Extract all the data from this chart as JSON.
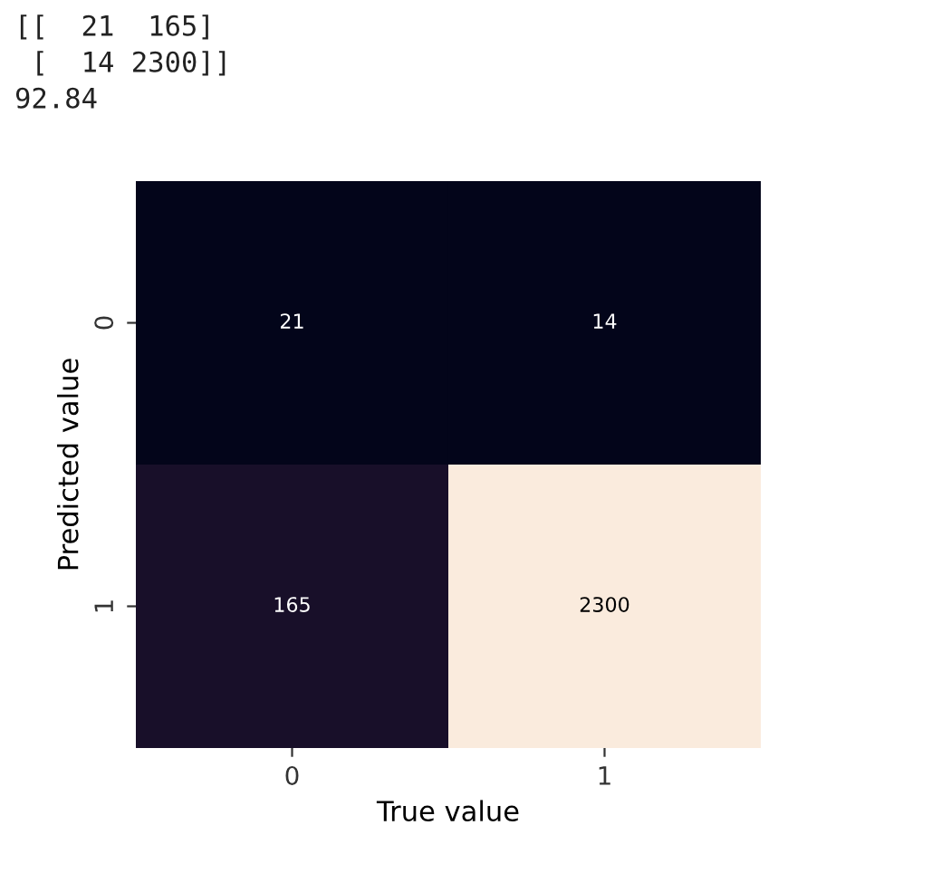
{
  "chart_data": {
    "type": "heatmap",
    "xlabel": "True value",
    "ylabel": "Predicted value",
    "categories": [
      "0",
      "1"
    ],
    "y_categories": [
      "0",
      "1"
    ],
    "cells": [
      [
        21,
        14
      ],
      [
        165,
        2300
      ]
    ],
    "data_labels": true,
    "annotations": [
      "[[  21  165]",
      " [  14 2300]]",
      "92.84"
    ]
  }
}
